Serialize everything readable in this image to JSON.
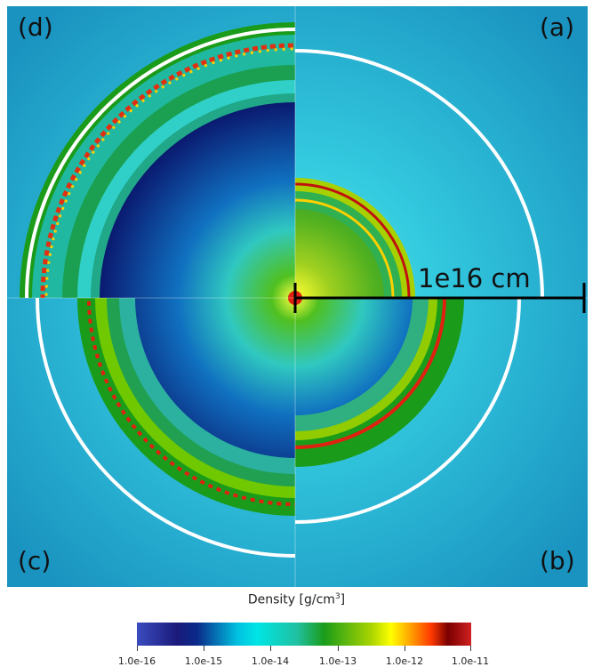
{
  "panels": {
    "a": "(a)",
    "b": "(b)",
    "c": "(c)",
    "d": "(d)"
  },
  "scale_label": "1e16 cm",
  "colorbar": {
    "title": "Density [g/cm",
    "title_sup": "3",
    "title_end": "]",
    "ticks": [
      "1.0e-16",
      "1.0e-15",
      "1.0e-14",
      "1.0e-13",
      "1.0e-12",
      "1.0e-11"
    ]
  },
  "colors": {
    "background": "#1fa3c8",
    "shell_green": "#1a9c1a",
    "front_red": "#e02010",
    "inner_blue": "#0d2a8a",
    "ring_white": "#ffffff"
  }
}
